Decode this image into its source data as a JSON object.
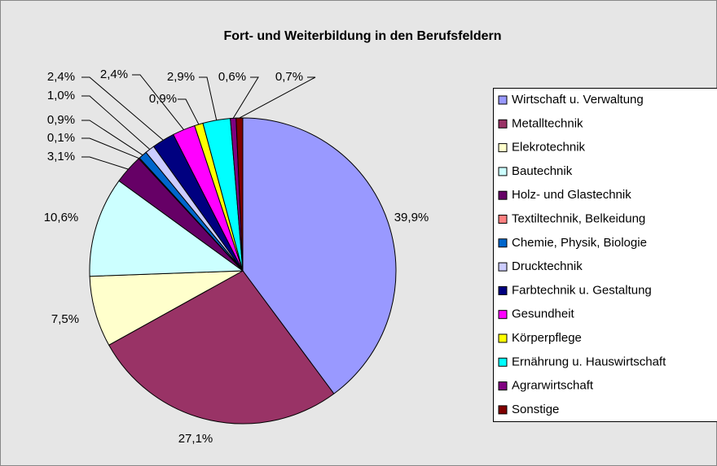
{
  "chart_data": {
    "type": "pie",
    "title": "Fort- und Weiterbildung in den Berufsfeldern",
    "categories": [
      "Wirtschaft u. Verwaltung",
      "Metalltechnik",
      "Elekrotechnik",
      "Bautechnik",
      "Holz- und Glastechnik",
      "Textiltechnik, Belkeidung",
      "Chemie, Physik, Biologie",
      "Drucktechnik",
      "Farbtechnik u. Gestaltung",
      "Gesundheit",
      "Körperpflege",
      "Ernährung u. Hauswirtschaft",
      "Agrarwirtschaft",
      "Sonstige"
    ],
    "values": [
      39.9,
      27.1,
      7.5,
      10.6,
      3.1,
      0.1,
      0.9,
      1.0,
      2.4,
      2.4,
      0.9,
      2.9,
      0.6,
      0.7
    ],
    "value_labels": [
      "39,9%",
      "27,1%",
      "7,5%",
      "10,6%",
      "3,1%",
      "0,1%",
      "0,9%",
      "1,0%",
      "2,4%",
      "2,4%",
      "0,9%",
      "2,9%",
      "0,6%",
      "0,7%"
    ],
    "colors": [
      "#9999ff",
      "#993366",
      "#ffffcc",
      "#ccffff",
      "#660066",
      "#ff8080",
      "#0066cc",
      "#ccccff",
      "#000080",
      "#ff00ff",
      "#ffff00",
      "#00ffff",
      "#800080",
      "#800000"
    ],
    "legend": "right"
  }
}
